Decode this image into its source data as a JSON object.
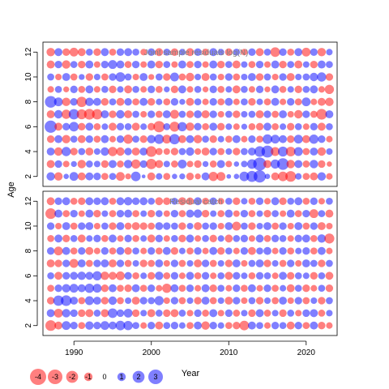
{
  "chart_data": {
    "type": "scatter",
    "subtype": "bubble",
    "ylabel": "Age",
    "xlabel": "Year",
    "xlim": [
      1986,
      2024
    ],
    "ylim": [
      1.2,
      12.8
    ],
    "x_ticks": [
      1990,
      2000,
      2010,
      2020
    ],
    "y_ticks": [
      2,
      4,
      6,
      8,
      10,
      12
    ],
    "years": [
      1987,
      1988,
      1989,
      1990,
      1991,
      1992,
      1993,
      1994,
      1995,
      1996,
      1997,
      1998,
      1999,
      2000,
      2001,
      2002,
      2003,
      2004,
      2005,
      2006,
      2007,
      2008,
      2009,
      2010,
      2011,
      2012,
      2013,
      2014,
      2015,
      2016,
      2017,
      2018,
      2019,
      2020,
      2021,
      2022,
      2023
    ],
    "ages": [
      2,
      3,
      4,
      5,
      6,
      7,
      8,
      9,
      10,
      11,
      12
    ],
    "colors": {
      "positive": "#0000ff",
      "negative": "#ff0000"
    },
    "legend": {
      "values": [
        -4,
        -3,
        -2,
        -1,
        0,
        1,
        2,
        3
      ],
      "labels": [
        "-4",
        "-3",
        "-2",
        "-1",
        "0",
        "1",
        "2",
        "3"
      ]
    },
    "panels": [
      {
        "title": "Joint sample residuals log(N)",
        "residuals": [
          [
            1.0,
            -1.0,
            0.4,
            1.1,
            -0.9,
            0.9,
            0.8,
            -0.7,
            0.7,
            -1.1,
            -0.5,
            1.3,
            0.2,
            -0.9,
            0.6,
            -0.7,
            0.4,
            0.5,
            -0.8,
            -0.5,
            0.9,
            -1.2,
            -1.1,
            0.3,
            0.4,
            1.3,
            1.7,
            2.1,
            0.4,
            -0.9,
            -1.3,
            -1.6,
            0.6,
            -0.7,
            -0.9,
            1.0,
            -0.6
          ],
          [
            -0.9,
            0.8,
            -0.6,
            0.5,
            -1.0,
            0.7,
            0.6,
            -0.8,
            0.9,
            -0.7,
            1.0,
            -1.2,
            0.8,
            -1.5,
            -0.9,
            0.6,
            -0.7,
            1.1,
            -0.6,
            -0.8,
            0.5,
            -0.7,
            0.9,
            -0.6,
            0.4,
            0.6,
            1.3,
            2.4,
            -0.9,
            1.2,
            1.9,
            -1.0,
            0.9,
            -0.7,
            1.0,
            -0.8,
            -0.4
          ],
          [
            0.9,
            -1.0,
            1.2,
            -0.8,
            0.7,
            -0.9,
            0.6,
            1.0,
            -1.2,
            -1.0,
            0.8,
            -0.9,
            0.9,
            -1.6,
            -0.7,
            -0.6,
            -0.8,
            0.7,
            1.0,
            -0.6,
            -0.9,
            0.8,
            -0.7,
            0.6,
            -0.8,
            0.7,
            0.9,
            1.6,
            2.0,
            -1.1,
            1.4,
            -1.3,
            1.1,
            -0.7,
            0.9,
            -1.0,
            0.6
          ],
          [
            -0.8,
            0.9,
            -1.0,
            0.7,
            -0.9,
            0.8,
            -0.7,
            0.9,
            -0.6,
            0.8,
            -1.2,
            0.7,
            -0.8,
            1.0,
            1.3,
            -1.1,
            1.5,
            -0.9,
            0.9,
            -1.0,
            0.7,
            -0.8,
            0.6,
            -0.7,
            0.9,
            -0.6,
            0.8,
            -0.7,
            1.3,
            1.1,
            0.9,
            -0.8,
            1.1,
            -0.9,
            1.2,
            0.8,
            -0.6
          ],
          [
            2.1,
            -0.9,
            0.8,
            1.3,
            -0.8,
            0.9,
            -0.7,
            0.6,
            -0.9,
            0.8,
            0.7,
            -0.9,
            0.6,
            -0.8,
            -1.8,
            0.7,
            -1.4,
            1.2,
            -1.0,
            0.8,
            -0.7,
            0.9,
            -0.8,
            0.6,
            -0.6,
            0.5,
            -0.7,
            -0.8,
            0.9,
            -0.7,
            0.6,
            -0.8,
            0.7,
            -0.6,
            0.8,
            -0.9,
            0.7
          ],
          [
            -0.9,
            1.0,
            -1.2,
            1.5,
            -1.4,
            -1.6,
            -1.5,
            0.9,
            -0.8,
            1.0,
            -0.9,
            0.7,
            -0.6,
            0.8,
            -0.7,
            0.9,
            -1.1,
            0.7,
            -0.8,
            0.9,
            -0.9,
            0.8,
            -0.6,
            0.7,
            -0.8,
            0.6,
            0.7,
            -0.9,
            0.8,
            -0.7,
            0.9,
            -0.6,
            -1.0,
            0.8,
            -0.7,
            -1.6,
            0.9
          ],
          [
            1.9,
            1.1,
            -1.0,
            0.8,
            -1.5,
            1.0,
            0.9,
            -0.8,
            0.7,
            -0.9,
            0.8,
            -0.7,
            0.9,
            -0.8,
            0.6,
            -0.7,
            0.8,
            0.5,
            -0.9,
            0.7,
            -0.6,
            0.8,
            -0.7,
            0.9,
            -0.6,
            0.7,
            -0.8,
            0.6,
            -0.7,
            0.9,
            -0.6,
            0.8,
            -0.7,
            1.1,
            -0.6,
            -0.9,
            -1.0
          ],
          [
            -0.6,
            0.7,
            -0.5,
            0.8,
            -0.7,
            0.9,
            -0.6,
            0.7,
            -0.8,
            0.6,
            -0.9,
            0.7,
            -0.6,
            0.8,
            -0.7,
            0.5,
            -0.8,
            0.9,
            -0.6,
            0.7,
            -0.5,
            0.8,
            -0.7,
            0.6,
            -0.9,
            0.7,
            -0.6,
            0.8,
            -0.5,
            0.9,
            -0.7,
            0.6,
            -0.8,
            0.7,
            0.9,
            -0.6,
            -1.2
          ],
          [
            0.7,
            -0.6,
            0.9,
            -0.7,
            0.5,
            -0.8,
            0.6,
            -0.7,
            0.8,
            1.3,
            0.7,
            -0.6,
            0.9,
            -0.5,
            0.7,
            -0.8,
            1.1,
            -0.7,
            -1.0,
            0.6,
            -0.9,
            0.7,
            -0.6,
            0.8,
            -0.7,
            0.6,
            0.9,
            -0.8,
            0.7,
            -0.6,
            0.8,
            -0.9,
            0.6,
            0.7,
            1.0,
            1.2,
            -0.8
          ],
          [
            -0.9,
            0.8,
            -1.0,
            0.7,
            -0.8,
            0.9,
            -0.6,
            0.8,
            1.1,
            0.9,
            -0.7,
            0.8,
            -0.6,
            0.9,
            -0.8,
            0.7,
            -0.6,
            0.9,
            -0.7,
            0.8,
            -0.6,
            0.9,
            -0.8,
            0.7,
            -0.9,
            0.6,
            -0.7,
            0.8,
            -0.6,
            0.9,
            -0.8,
            0.7,
            -0.9,
            0.6,
            -0.8,
            0.9,
            0.7
          ],
          [
            -1.0,
            0.9,
            -0.8,
            -1.1,
            -0.9,
            0.7,
            -0.8,
            0.9,
            -0.7,
            0.8,
            0.9,
            0.7,
            -0.6,
            0.8,
            -0.9,
            0.7,
            -0.8,
            0.6,
            -0.9,
            0.8,
            -0.7,
            0.9,
            0.6,
            -0.8,
            0.7,
            -0.6,
            0.8,
            -0.9,
            0.7,
            -1.3,
            0.8,
            -0.7,
            0.9,
            -1.1,
            0.8,
            -1.0,
            0.6
          ]
        ]
      },
      {
        "title": "Residual catch",
        "residuals": [
          [
            -1.6,
            -0.9,
            1.1,
            0.8,
            -0.7,
            1.0,
            0.8,
            1.1,
            0.9,
            1.3,
            1.2,
            0.7,
            -0.6,
            0.8,
            -0.9,
            0.7,
            0.8,
            0.6,
            -0.7,
            0.9,
            -1.0,
            0.8,
            0.6,
            -0.7,
            -0.8,
            -1.3,
            0.9,
            0.7,
            -0.6,
            0.8,
            0.7,
            -0.9,
            0.8,
            -0.7,
            0.9,
            -0.8,
            -0.6
          ],
          [
            0.9,
            -1.1,
            1.0,
            0.8,
            -0.8,
            -0.9,
            0.7,
            -0.9,
            1.3,
            0.8,
            1.1,
            -0.8,
            0.6,
            -0.9,
            0.7,
            -0.8,
            -0.9,
            0.7,
            -0.6,
            0.8,
            -0.7,
            0.9,
            -0.6,
            0.8,
            -0.7,
            0.6,
            -0.8,
            0.9,
            -0.7,
            0.6,
            -0.8,
            0.7,
            -0.6,
            0.8,
            0.9,
            -0.7,
            0.6
          ],
          [
            -0.8,
            1.5,
            1.6,
            0.9,
            -0.7,
            1.1,
            0.9,
            -0.8,
            1.0,
            -0.7,
            0.6,
            -0.9,
            0.8,
            0.7,
            1.2,
            -0.6,
            0.8,
            -0.7,
            0.6,
            -0.8,
            0.9,
            -0.7,
            0.6,
            -0.9,
            0.8,
            -0.6,
            0.7,
            -0.8,
            0.6,
            -0.7,
            0.9,
            -0.6,
            0.8,
            -0.7,
            0.6,
            -0.8,
            0.7
          ],
          [
            -0.7,
            0.8,
            1.0,
            1.1,
            0.9,
            1.2,
            1.1,
            -0.8,
            0.9,
            -0.7,
            -0.8,
            0.9,
            -0.7,
            0.8,
            -0.6,
            -1.2,
            0.9,
            -0.7,
            0.8,
            -0.6,
            0.9,
            -0.8,
            0.7,
            -0.6,
            0.8,
            -0.7,
            0.9,
            -0.6,
            0.8,
            -0.7,
            0.6,
            -0.9,
            0.7,
            -0.8,
            -0.6,
            0.7,
            -0.8
          ],
          [
            0.7,
            -0.9,
            0.8,
            0.9,
            1.0,
            0.9,
            1.2,
            -1.0,
            -0.9,
            -1.1,
            0.8,
            -0.7,
            0.6,
            -0.8,
            1.0,
            -0.7,
            0.8,
            -0.6,
            0.9,
            -0.7,
            0.8,
            -0.6,
            0.7,
            -0.9,
            0.8,
            0.6,
            -0.7,
            0.8,
            0.7,
            -0.6,
            0.9,
            -0.8,
            0.7,
            0.6,
            -0.8,
            0.7,
            -0.9
          ],
          [
            -0.9,
            -0.8,
            0.8,
            -1.1,
            0.9,
            -0.7,
            0.8,
            0.9,
            -0.9,
            0.8,
            -0.7,
            0.6,
            -0.8,
            -0.7,
            0.9,
            -0.6,
            0.8,
            -0.7,
            0.6,
            -0.9,
            0.8,
            -0.7,
            0.6,
            -0.8,
            0.9,
            -0.6,
            0.7,
            0.9,
            -0.8,
            0.6,
            -0.7,
            0.8,
            -0.6,
            0.9,
            0.7,
            -0.8,
            0.7
          ],
          [
            0.8,
            -1.1,
            0.9,
            -0.7,
            0.8,
            -0.9,
            -0.6,
            0.8,
            -0.7,
            0.9,
            -0.8,
            0.7,
            -0.6,
            0.8,
            -0.7,
            0.9,
            -0.8,
            0.6,
            -0.7,
            0.8,
            -0.6,
            0.9,
            -0.8,
            0.7,
            -0.6,
            0.8,
            -0.9,
            0.7,
            0.9,
            -0.6,
            0.8,
            -0.7,
            0.6,
            0.8,
            -0.7,
            0.9,
            -0.6
          ],
          [
            -0.7,
            0.9,
            -0.8,
            0.7,
            -0.9,
            0.6,
            0.8,
            -0.7,
            0.9,
            -0.6,
            0.8,
            -0.7,
            0.6,
            -0.9,
            0.8,
            -0.6,
            0.7,
            -0.8,
            0.9,
            -0.6,
            0.7,
            -0.8,
            0.6,
            -0.9,
            0.7,
            0.8,
            -0.6,
            0.9,
            -0.7,
            0.8,
            0.7,
            -0.6,
            0.8,
            0.9,
            -0.7,
            1.0,
            -1.4
          ],
          [
            0.8,
            -0.6,
            0.9,
            -0.7,
            0.8,
            0.9,
            -0.6,
            0.7,
            -0.8,
            0.9,
            -0.7,
            -0.9,
            -0.8,
            -0.7,
            0.9,
            0.8,
            0.7,
            -0.8,
            0.6,
            -0.9,
            0.7,
            0.8,
            -0.6,
            0.9,
            -1.1,
            0.7,
            -0.8,
            0.6,
            0.9,
            -0.7,
            0.8,
            -0.6,
            0.9,
            -0.7,
            0.8,
            -0.9,
            -0.6
          ],
          [
            -1.6,
            0.9,
            -0.7,
            0.8,
            -0.6,
            0.9,
            -0.8,
            0.6,
            -0.7,
            0.8,
            0.9,
            -0.7,
            0.6,
            -0.8,
            0.7,
            -0.6,
            0.8,
            -0.7,
            0.9,
            1.0,
            -0.8,
            0.6,
            -0.7,
            0.9,
            -0.6,
            0.8,
            -0.7,
            0.6,
            -0.8,
            0.7,
            -0.6,
            0.9,
            -0.7,
            0.8,
            -1.1,
            0.7,
            -0.9
          ],
          [
            -0.9,
            0.8,
            0.9,
            -0.7,
            -0.8,
            0.9,
            0.8,
            0.9,
            -0.7,
            0.9,
            1.0,
            0.8,
            0.9,
            0.7,
            -0.9,
            -0.8,
            0.7,
            -0.9,
            -0.8,
            0.9,
            -0.7,
            0.8,
            -0.6,
            0.7,
            -0.8,
            0.6,
            -0.7,
            0.8,
            -0.6,
            0.9,
            -0.8,
            0.7,
            0.9,
            -0.7,
            0.8,
            -0.6,
            0.7
          ]
        ]
      }
    ]
  }
}
